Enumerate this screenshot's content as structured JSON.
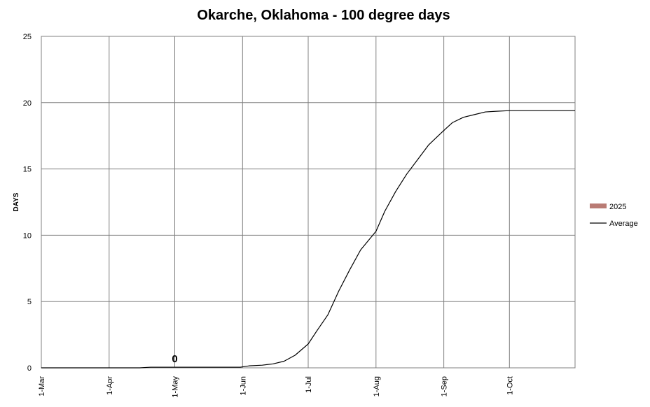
{
  "chart_data": {
    "type": "line",
    "title": "Okarche, Oklahoma - 100 degree days",
    "xlabel": "",
    "ylabel": "DAYS",
    "ylim": [
      0,
      25
    ],
    "yticks": [
      "0",
      "5",
      "10",
      "15",
      "20",
      "25"
    ],
    "xlim": [
      "2025-03-01",
      "2025-10-31"
    ],
    "xticks": [
      {
        "label": "1-Mar",
        "date": "2025-03-01"
      },
      {
        "label": "1-Apr",
        "date": "2025-04-01"
      },
      {
        "label": "1-May",
        "date": "2025-05-01"
      },
      {
        "label": "1-Jun",
        "date": "2025-06-01"
      },
      {
        "label": "1-Jul",
        "date": "2025-07-01"
      },
      {
        "label": "1-Aug",
        "date": "2025-08-01"
      },
      {
        "label": "1-Sep",
        "date": "2025-09-01"
      },
      {
        "label": "1-Oct",
        "date": "2025-10-01"
      }
    ],
    "grid": true,
    "legend_position": "right",
    "series": [
      {
        "name": "2025",
        "type": "bar",
        "color": "#b97b74",
        "points": [
          {
            "x": "2025-05-01",
            "y": 0
          }
        ],
        "data_labels": [
          {
            "x": "2025-05-01",
            "y": 0,
            "text": "0"
          }
        ]
      },
      {
        "name": "Average",
        "type": "line",
        "color": "#000000",
        "points": [
          {
            "x": "2025-03-01",
            "y": 0
          },
          {
            "x": "2025-04-15",
            "y": 0
          },
          {
            "x": "2025-04-20",
            "y": 0.05
          },
          {
            "x": "2025-05-31",
            "y": 0.05
          },
          {
            "x": "2025-06-04",
            "y": 0.15
          },
          {
            "x": "2025-06-10",
            "y": 0.2
          },
          {
            "x": "2025-06-15",
            "y": 0.3
          },
          {
            "x": "2025-06-20",
            "y": 0.5
          },
          {
            "x": "2025-06-25",
            "y": 0.95
          },
          {
            "x": "2025-07-01",
            "y": 1.8
          },
          {
            "x": "2025-07-05",
            "y": 2.8
          },
          {
            "x": "2025-07-10",
            "y": 4.0
          },
          {
            "x": "2025-07-15",
            "y": 5.8
          },
          {
            "x": "2025-07-20",
            "y": 7.4
          },
          {
            "x": "2025-07-25",
            "y": 8.9
          },
          {
            "x": "2025-08-01",
            "y": 10.3
          },
          {
            "x": "2025-08-05",
            "y": 11.8
          },
          {
            "x": "2025-08-10",
            "y": 13.3
          },
          {
            "x": "2025-08-15",
            "y": 14.6
          },
          {
            "x": "2025-08-20",
            "y": 15.7
          },
          {
            "x": "2025-08-25",
            "y": 16.8
          },
          {
            "x": "2025-09-01",
            "y": 17.9
          },
          {
            "x": "2025-09-05",
            "y": 18.5
          },
          {
            "x": "2025-09-10",
            "y": 18.9
          },
          {
            "x": "2025-09-15",
            "y": 19.1
          },
          {
            "x": "2025-09-20",
            "y": 19.3
          },
          {
            "x": "2025-09-25",
            "y": 19.35
          },
          {
            "x": "2025-10-01",
            "y": 19.4
          },
          {
            "x": "2025-10-31",
            "y": 19.4
          }
        ]
      }
    ]
  }
}
